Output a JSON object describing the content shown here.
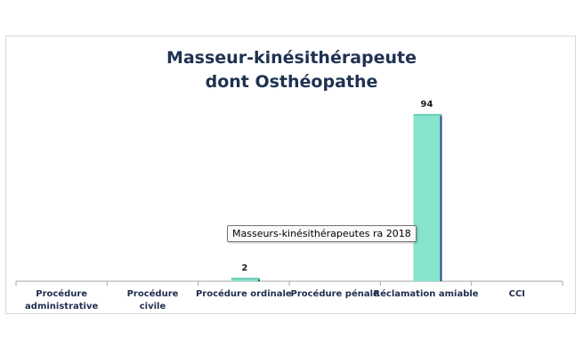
{
  "chart_data": {
    "type": "bar",
    "title": [
      "Masseur-kinésithérapeute",
      "dont Osthéopathe"
    ],
    "categories": [
      [
        "Procédure",
        "administrative"
      ],
      [
        "Procédure",
        "civile"
      ],
      [
        "Procédure ordinale"
      ],
      [
        "Procédure pénale"
      ],
      [
        "Réclamation amiable"
      ],
      [
        "CCI"
      ]
    ],
    "series": [
      {
        "name": "Masseurs-kinésithérapeutes ra 2018",
        "values": [
          0,
          0,
          2,
          0,
          94,
          0
        ],
        "data_labels": [
          "",
          "",
          "2",
          "",
          "94",
          ""
        ]
      }
    ],
    "ylim": [
      0,
      100
    ],
    "grid": false,
    "legend": "none",
    "xlabel": "",
    "ylabel": ""
  },
  "tooltip": {
    "text": "Masseurs-kinésithérapeutes ra 2018"
  },
  "colors": {
    "bar_fill": "#86e3ce",
    "bar_top": "#6fcfb9",
    "bar_shadow": "#2f4a86",
    "axis": "#a6a6a6",
    "title": "#1f3251",
    "label": "#1f2d4d"
  }
}
